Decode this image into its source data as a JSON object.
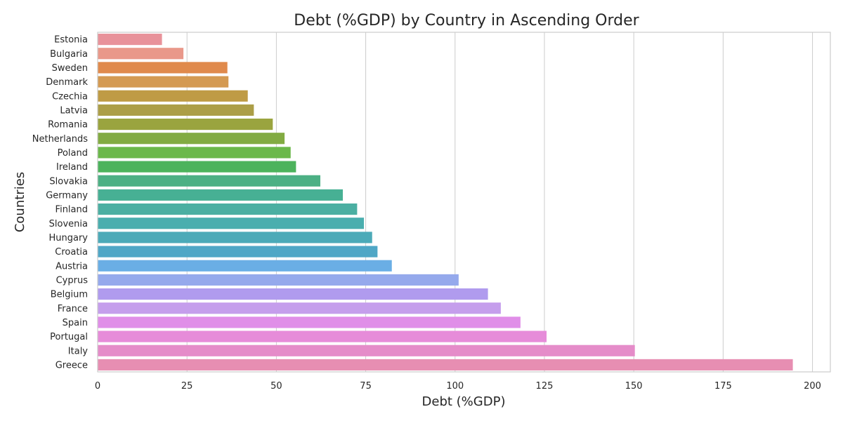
{
  "chart_data": {
    "type": "bar",
    "orientation": "horizontal",
    "title": "Debt (%GDP) by Country in Ascending Order",
    "xlabel": "Debt (%GDP)",
    "ylabel": "Countries",
    "xlim": [
      0,
      205
    ],
    "xticks": [
      0,
      25,
      50,
      75,
      100,
      125,
      150,
      175,
      200
    ],
    "grid": "vertical",
    "categories": [
      "Estonia",
      "Bulgaria",
      "Sweden",
      "Denmark",
      "Czechia",
      "Latvia",
      "Romania",
      "Netherlands",
      "Poland",
      "Ireland",
      "Slovakia",
      "Germany",
      "Finland",
      "Slovenia",
      "Hungary",
      "Croatia",
      "Austria",
      "Cyprus",
      "Belgium",
      "France",
      "Spain",
      "Portugal",
      "Italy",
      "Greece"
    ],
    "values": [
      18,
      24,
      36.3,
      36.6,
      42,
      43.7,
      49,
      52.3,
      54,
      55.5,
      62.3,
      68.6,
      72.6,
      74.5,
      76.8,
      78.3,
      82.3,
      101,
      109.2,
      112.8,
      118.3,
      125.6,
      150.3,
      194.5
    ],
    "colors": [
      "#e8929a",
      "#e9988a",
      "#e08a4c",
      "#d49a52",
      "#bf9b45",
      "#ac9e47",
      "#9aa43f",
      "#82ab42",
      "#6bb84a",
      "#4cb35c",
      "#4cb084",
      "#47b094",
      "#4bafa2",
      "#4aaeae",
      "#4caab8",
      "#4fa7c6",
      "#6aaee5",
      "#95a9ec",
      "#b09bee",
      "#c59eec",
      "#e08ee8",
      "#e68cd9",
      "#e58cc9",
      "#e78eb2"
    ]
  }
}
